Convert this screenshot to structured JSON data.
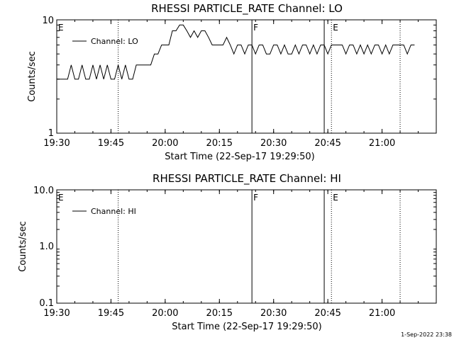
{
  "chart_data": [
    {
      "type": "line",
      "title": "RHESSI PARTICLE_RATE Channel: LO",
      "xlabel": "Start Time (22-Sep-17 19:29:50)",
      "ylabel": "Counts/sec",
      "x_ticks": [
        "19:30",
        "19:45",
        "20:00",
        "20:15",
        "20:30",
        "20:45",
        "21:00"
      ],
      "y_ticks": [
        "10",
        "1"
      ],
      "y_scale": "log",
      "ylim": [
        1,
        10
      ],
      "xlim": [
        "19:30",
        "21:15"
      ],
      "legend": "Channel: LO",
      "event_markers": [
        {
          "label": "E",
          "time": "19:30",
          "style": "none"
        },
        {
          "label": "",
          "time": "19:47",
          "style": "dotted"
        },
        {
          "label": "F",
          "time": "20:24",
          "style": "solid"
        },
        {
          "label": "",
          "time": "20:44",
          "style": "solid"
        },
        {
          "label": "E",
          "time": "20:46",
          "style": "dotted"
        },
        {
          "label": "",
          "time": "21:05",
          "style": "dotted"
        }
      ],
      "series": [
        {
          "name": "Channel: LO",
          "x_minutes_from_1930": [
            0,
            1,
            2,
            3,
            4,
            5,
            6,
            7,
            8,
            9,
            10,
            11,
            12,
            13,
            14,
            15,
            16,
            17,
            18,
            19,
            20,
            21,
            22,
            23,
            24,
            25,
            26,
            27,
            28,
            29,
            30,
            31,
            32,
            33,
            34,
            35,
            36,
            37,
            38,
            39,
            40,
            41,
            42,
            43,
            44,
            45,
            46,
            47,
            48,
            49,
            50,
            51,
            52,
            53,
            54,
            55,
            56,
            57,
            58,
            59,
            60,
            61,
            62,
            63,
            64,
            65,
            66,
            67,
            68,
            69,
            70,
            71,
            72,
            73,
            74,
            75,
            76,
            77,
            78,
            79,
            80,
            81,
            82,
            83,
            84,
            85,
            86,
            87,
            88,
            89,
            90,
            91,
            92,
            93,
            94,
            95,
            96,
            97,
            98,
            99
          ],
          "values": [
            3,
            3,
            3,
            3,
            4,
            3,
            3,
            4,
            3,
            3,
            4,
            3,
            4,
            3,
            4,
            3,
            3,
            4,
            3,
            4,
            3,
            3,
            4,
            4,
            4,
            4,
            4,
            5,
            5,
            6,
            6,
            6,
            8,
            8,
            9,
            9,
            8,
            7,
            8,
            7,
            8,
            8,
            7,
            6,
            6,
            6,
            6,
            7,
            6,
            5,
            6,
            6,
            5,
            6,
            6,
            5,
            6,
            6,
            5,
            5,
            6,
            6,
            5,
            6,
            5,
            5,
            6,
            5,
            6,
            6,
            5,
            6,
            5,
            6,
            6,
            5,
            6,
            6,
            6,
            6,
            5,
            6,
            6,
            5,
            6,
            5,
            6,
            5,
            6,
            6,
            5,
            6,
            5,
            6,
            6,
            6,
            6,
            5,
            6,
            6
          ]
        }
      ]
    },
    {
      "type": "line",
      "title": "RHESSI PARTICLE_RATE Channel: HI",
      "xlabel": "Start Time (22-Sep-17 19:29:50)",
      "ylabel": "Counts/sec",
      "x_ticks": [
        "19:30",
        "19:45",
        "20:00",
        "20:15",
        "20:30",
        "20:45",
        "21:00"
      ],
      "y_ticks": [
        "10.0",
        "1.0",
        "0.1"
      ],
      "y_scale": "log",
      "ylim": [
        0.1,
        10
      ],
      "xlim": [
        "19:30",
        "21:15"
      ],
      "legend": "Channel: HI",
      "event_markers": [
        {
          "label": "E",
          "time": "19:30",
          "style": "none"
        },
        {
          "label": "",
          "time": "19:47",
          "style": "dotted"
        },
        {
          "label": "F",
          "time": "20:24",
          "style": "solid"
        },
        {
          "label": "",
          "time": "20:44",
          "style": "solid"
        },
        {
          "label": "E",
          "time": "20:46",
          "style": "dotted"
        },
        {
          "label": "",
          "time": "21:05",
          "style": "dotted"
        }
      ],
      "series": [
        {
          "name": "Channel: HI",
          "values": []
        }
      ]
    }
  ],
  "footer": {
    "timestamp": "1-Sep-2022 23:38"
  }
}
